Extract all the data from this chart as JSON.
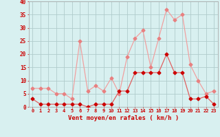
{
  "x": [
    0,
    1,
    2,
    3,
    4,
    5,
    6,
    7,
    8,
    9,
    10,
    11,
    12,
    13,
    14,
    15,
    16,
    17,
    18,
    19,
    20,
    21,
    22,
    23
  ],
  "vent_moyen": [
    3,
    1,
    1,
    1,
    1,
    1,
    1,
    0,
    1,
    1,
    1,
    6,
    6,
    13,
    13,
    13,
    13,
    20,
    13,
    13,
    3,
    3,
    4,
    1
  ],
  "vent_rafales": [
    7,
    7,
    7,
    5,
    5,
    3,
    25,
    6,
    8,
    6,
    11,
    5,
    19,
    26,
    29,
    15,
    26,
    37,
    33,
    35,
    16,
    10,
    5,
    6
  ],
  "line_color_moyen": "#e06060",
  "line_color_rafales": "#f0a0a0",
  "marker_color_moyen": "#cc0000",
  "marker_color_rafales": "#e88080",
  "background_color": "#d8f0f0",
  "grid_color": "#b0cccc",
  "xlabel": "Vent moyen/en rafales ( km/h )",
  "xlabel_color": "#cc0000",
  "tick_color": "#cc0000",
  "ylim": [
    0,
    40
  ],
  "yticks": [
    0,
    5,
    10,
    15,
    20,
    25,
    30,
    35,
    40
  ]
}
